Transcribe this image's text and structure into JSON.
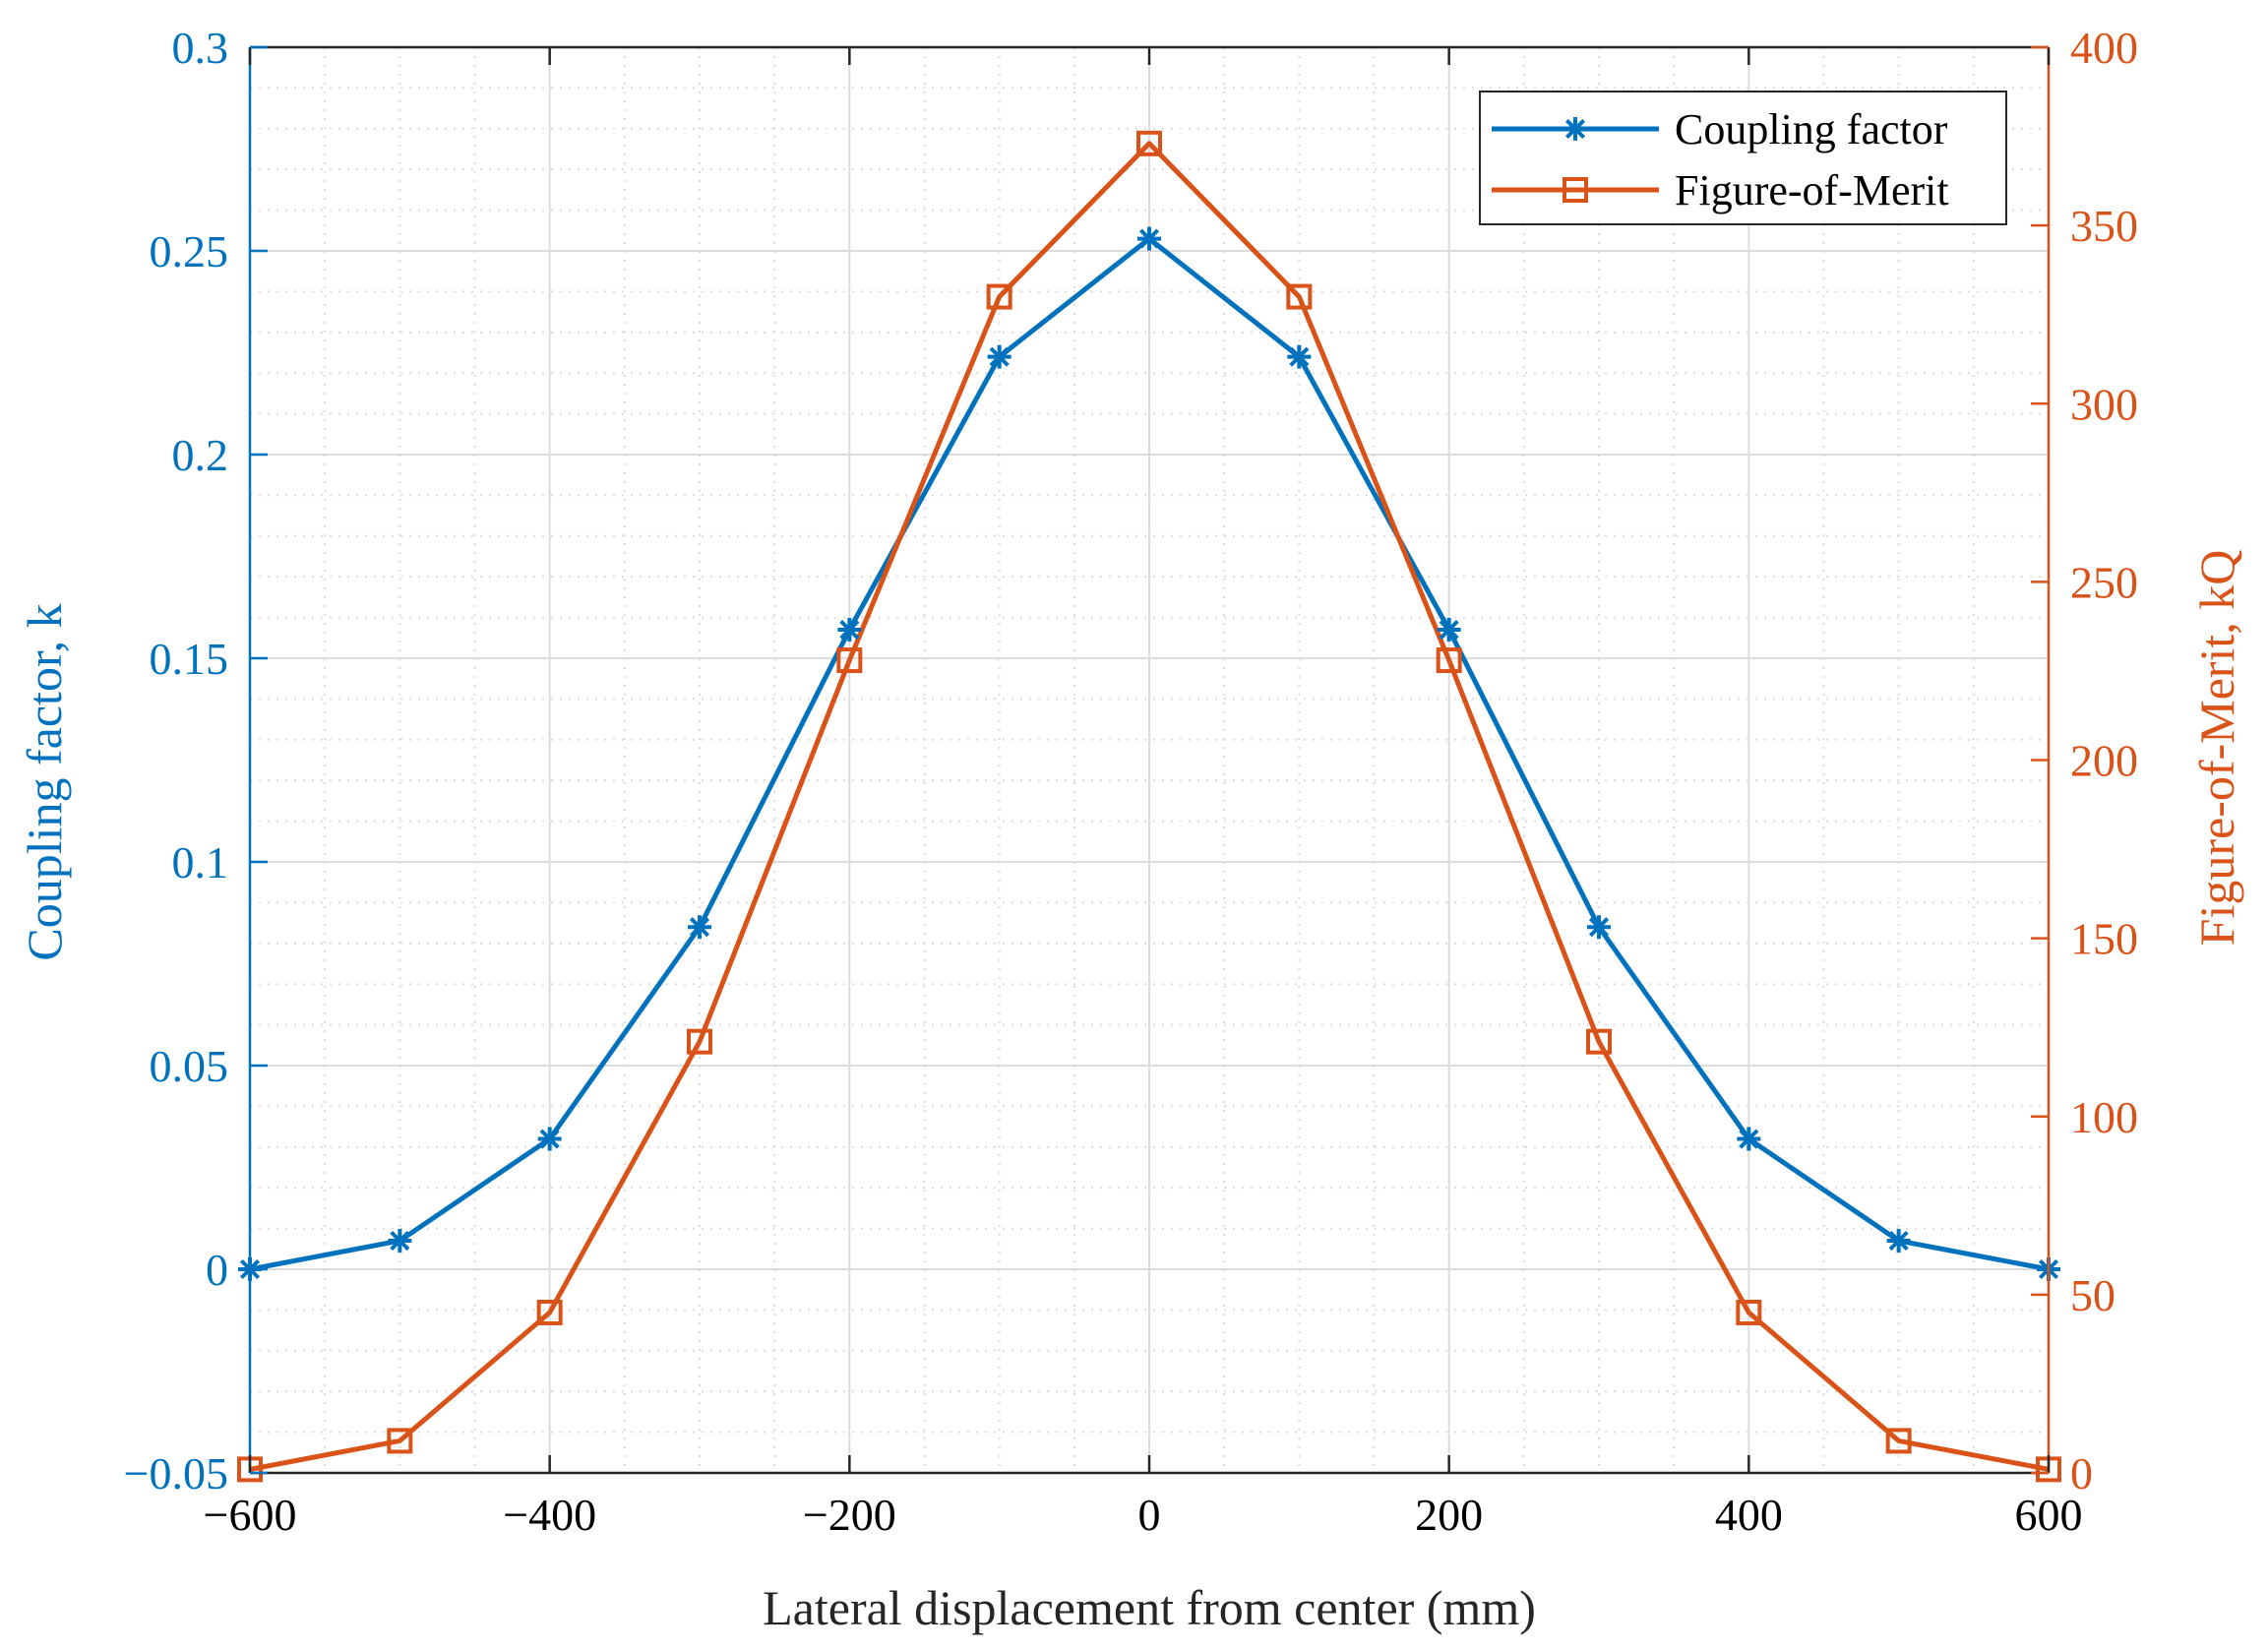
{
  "chart_data": {
    "type": "line",
    "title": "",
    "xlabel": "Lateral displacement from center (mm)",
    "ylabel_left": "Coupling factor, k",
    "ylabel_right": "Figure-of-Merit, kQ",
    "xlim": [
      -600,
      600
    ],
    "ylim_left": [
      -0.05,
      0.3
    ],
    "ylim_right": [
      0,
      400
    ],
    "x_ticks": [
      "−600",
      "−400",
      "−200",
      "0",
      "200",
      "400",
      "600"
    ],
    "x_tick_values": [
      -600,
      -400,
      -200,
      0,
      200,
      400,
      600
    ],
    "y_left_ticks": [
      "−0.05",
      "0",
      "0.05",
      "0.1",
      "0.15",
      "0.2",
      "0.25",
      "0.3"
    ],
    "y_left_tick_values": [
      -0.05,
      0,
      0.05,
      0.1,
      0.15,
      0.2,
      0.25,
      0.3
    ],
    "y_right_ticks": [
      "0",
      "50",
      "100",
      "150",
      "200",
      "250",
      "300",
      "350",
      "400"
    ],
    "y_right_tick_values": [
      0,
      50,
      100,
      150,
      200,
      250,
      300,
      350,
      400
    ],
    "grid": true,
    "minor_grid": true,
    "legend_position": "top-right",
    "x": [
      -600,
      -500,
      -400,
      -300,
      -200,
      -100,
      0,
      100,
      200,
      300,
      400,
      500,
      600
    ],
    "series": [
      {
        "name": "Coupling factor",
        "axis": "left",
        "marker": "asterisk",
        "color": "#0072BD",
        "values": [
          0.0,
          0.007,
          0.032,
          0.084,
          0.157,
          0.224,
          0.253,
          0.224,
          0.157,
          0.084,
          0.032,
          0.007,
          0.0
        ]
      },
      {
        "name": "Figure-of-Merit",
        "axis": "right",
        "marker": "square",
        "color": "#D95319",
        "values": [
          1,
          9,
          45,
          121,
          228,
          330,
          373,
          330,
          228,
          121,
          45,
          9,
          1
        ]
      }
    ]
  },
  "colors": {
    "left_axis": "#0072BD",
    "right_axis": "#D95319",
    "axis_black": "#262626",
    "grid": "#dcdcdc"
  }
}
